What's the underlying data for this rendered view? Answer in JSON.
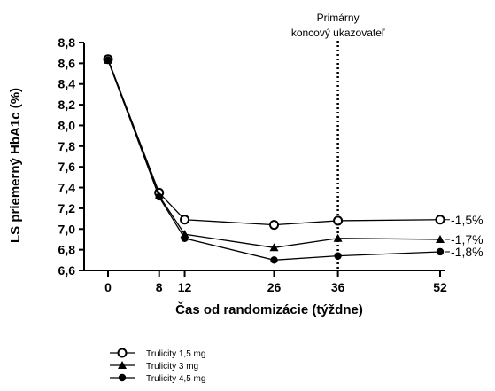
{
  "chart_data": {
    "type": "line",
    "xlabel": "Čas od randomizácie (týždne)",
    "ylabel": "LS priemerný HbA1c (%)",
    "x_ticks": [
      0,
      8,
      12,
      26,
      36,
      52
    ],
    "y_ticks": [
      "6,6",
      "6,8",
      "7,0",
      "7,2",
      "7,4",
      "7,6",
      "7,8",
      "8,0",
      "8,2",
      "8,4",
      "8,6",
      "8,8"
    ],
    "ylim": [
      6.6,
      8.8
    ],
    "series": [
      {
        "name": "Trulicity 1,5 mg",
        "marker": "open-circle",
        "x": [
          0,
          8,
          12,
          26,
          36,
          52
        ],
        "values": [
          8.64,
          7.35,
          7.09,
          7.04,
          7.08,
          7.09
        ],
        "end_label": "-1,5%"
      },
      {
        "name": "Trulicity 3 mg",
        "marker": "triangle",
        "x": [
          0,
          8,
          12,
          26,
          36,
          52
        ],
        "values": [
          8.63,
          7.32,
          6.95,
          6.82,
          6.91,
          6.9
        ],
        "end_label": "-1,7%"
      },
      {
        "name": "Trulicity 4,5 mg",
        "marker": "filled-circle",
        "x": [
          0,
          8,
          12,
          26,
          36,
          52
        ],
        "values": [
          8.63,
          7.31,
          6.91,
          6.7,
          6.74,
          6.78
        ],
        "end_label": "-1,8%"
      }
    ],
    "annotation": {
      "lines": [
        "Primárny",
        "koncový ukazovateľ"
      ],
      "x": 36
    },
    "legend_position": "bottom-left"
  }
}
